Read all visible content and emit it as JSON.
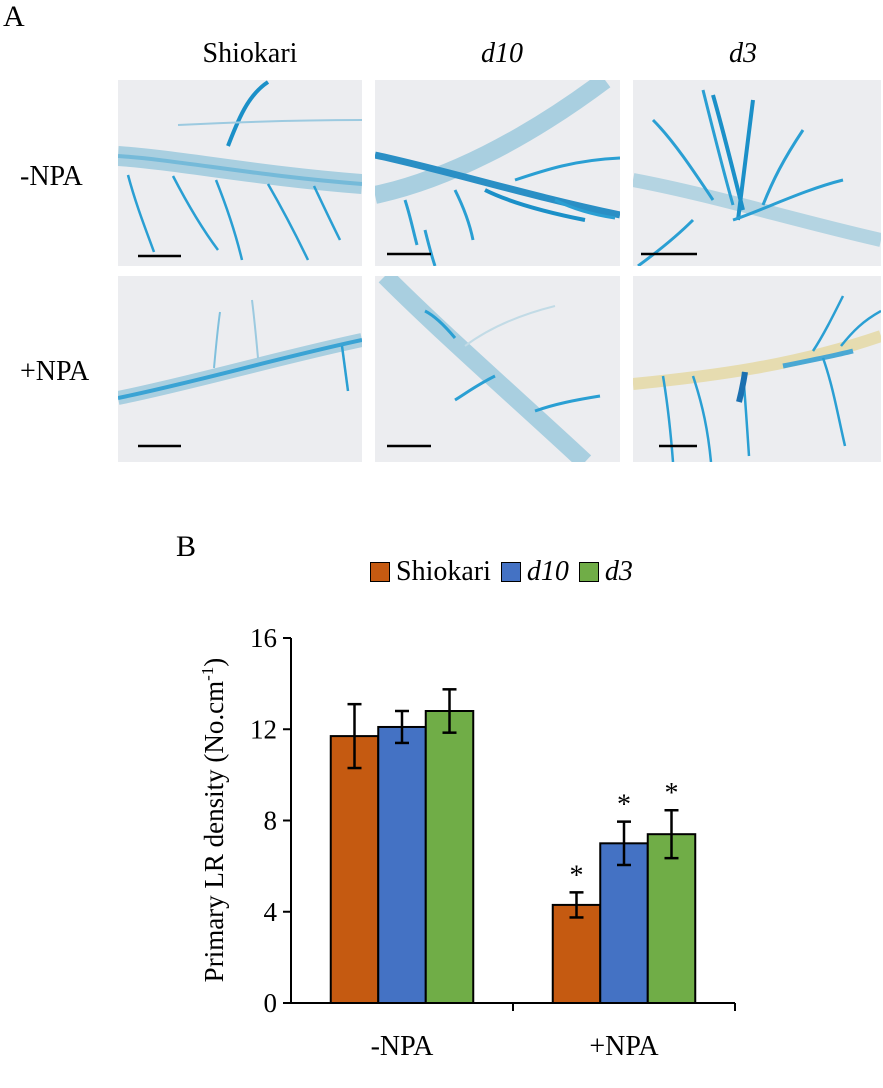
{
  "figure": {
    "panel_a": {
      "letter": "A",
      "columns": [
        "Shiokari",
        "d10",
        "d3"
      ],
      "rows": [
        "-NPA",
        "+NPA"
      ]
    },
    "panel_b": {
      "letter": "B"
    }
  },
  "colors": {
    "Shiokari": "#c55a11",
    "d10": "#4472c4",
    "d3": "#70ad47",
    "stain_blue": "#1b9ad1",
    "photo_bg": "#ecedf0"
  },
  "chart_data": {
    "type": "bar",
    "categories": [
      "-NPA",
      "+NPA"
    ],
    "series": [
      {
        "name": "Shiokari",
        "values": [
          11.7,
          4.3
        ],
        "errors": [
          1.4,
          0.55
        ],
        "significance": [
          "",
          "*"
        ]
      },
      {
        "name": "d10",
        "values": [
          12.1,
          7.0
        ],
        "errors": [
          0.7,
          0.95
        ],
        "significance": [
          "",
          "*"
        ]
      },
      {
        "name": "d3",
        "values": [
          12.8,
          7.4
        ],
        "errors": [
          0.95,
          1.05
        ],
        "significance": [
          "",
          "*"
        ]
      }
    ],
    "ylabel_main": "Primary LR density (No.cm",
    "ylabel_sup": "-1",
    "ylabel_close": ")",
    "xlabel": "",
    "ylim": [
      0,
      16
    ],
    "yticks": [
      0,
      4,
      8,
      12,
      16
    ],
    "legend_position": "top",
    "grid": false
  }
}
